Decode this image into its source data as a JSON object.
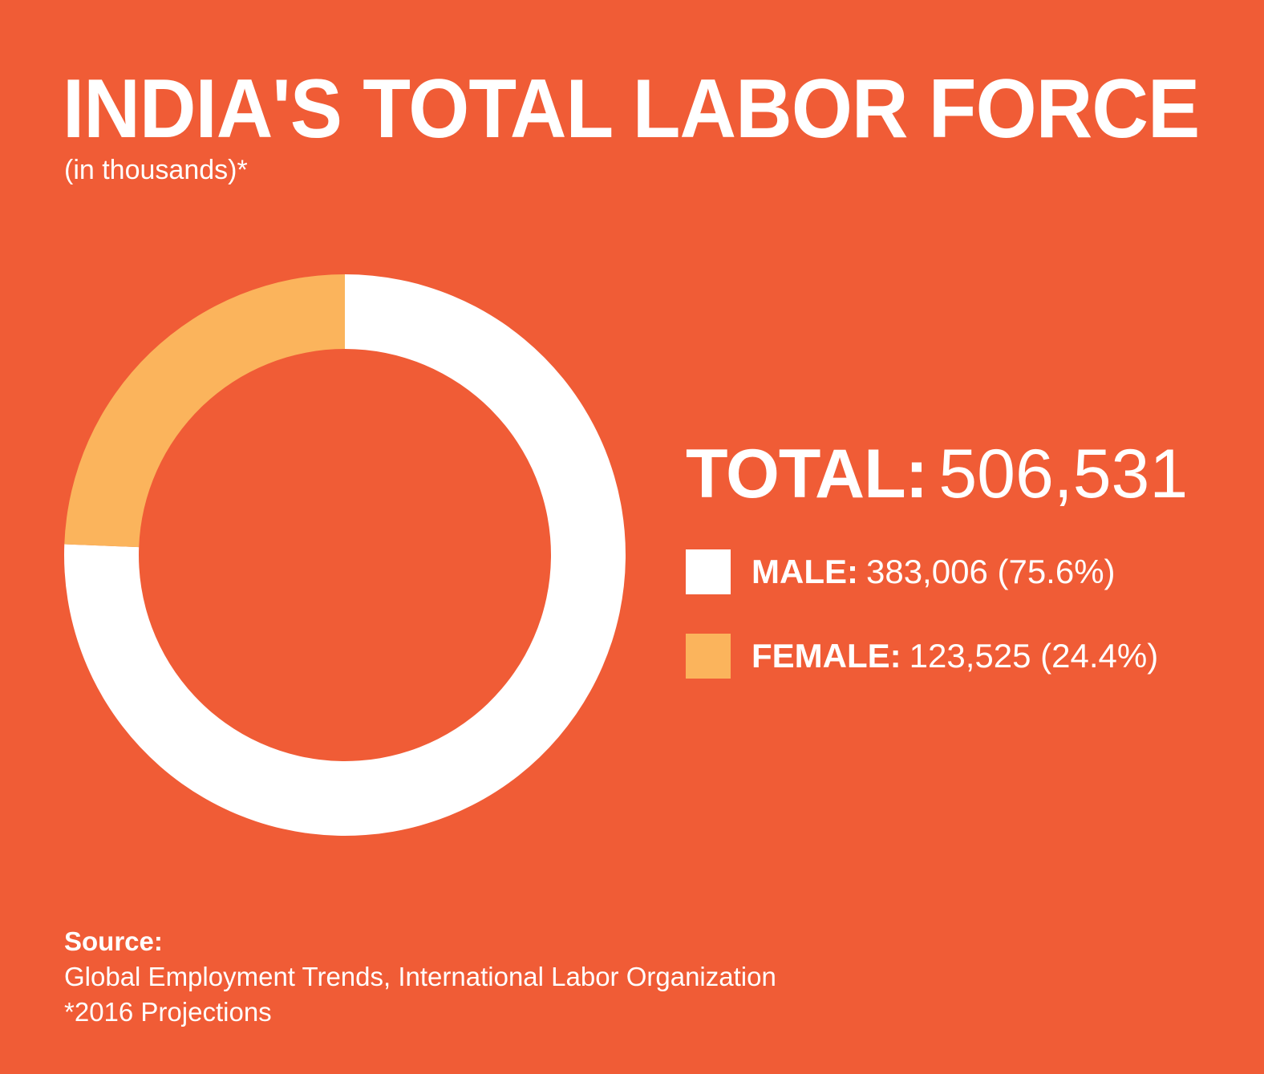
{
  "title": "INDIA'S TOTAL LABOR FORCE",
  "subtitle": "(in thousands)*",
  "colors": {
    "background": "#F05C36",
    "male": "#FFFFFF",
    "female": "#FBB45C"
  },
  "total": {
    "label": "TOTAL:",
    "value": "506,531"
  },
  "legend": [
    {
      "label": "MALE:",
      "value": "383,006 (75.6%)"
    },
    {
      "label": "FEMALE:",
      "value": "123,525 (24.4%)"
    }
  ],
  "source": {
    "label": "Source:",
    "text": "Global Employment Trends, International Labor Organization",
    "note": "*2016 Projections"
  },
  "chart_data": {
    "type": "pie",
    "variant": "donut",
    "title": "INDIA'S TOTAL LABOR FORCE",
    "subtitle": "(in thousands)*",
    "units": "thousands",
    "total": 506531,
    "categories": [
      "MALE",
      "FEMALE"
    ],
    "values": [
      383006,
      123525
    ],
    "percentages": [
      75.6,
      24.4
    ],
    "colors": [
      "#FFFFFF",
      "#FBB45C"
    ],
    "start_angle": "top, clockwise (female slice ends at 12 o'clock)",
    "legend_position": "right"
  }
}
